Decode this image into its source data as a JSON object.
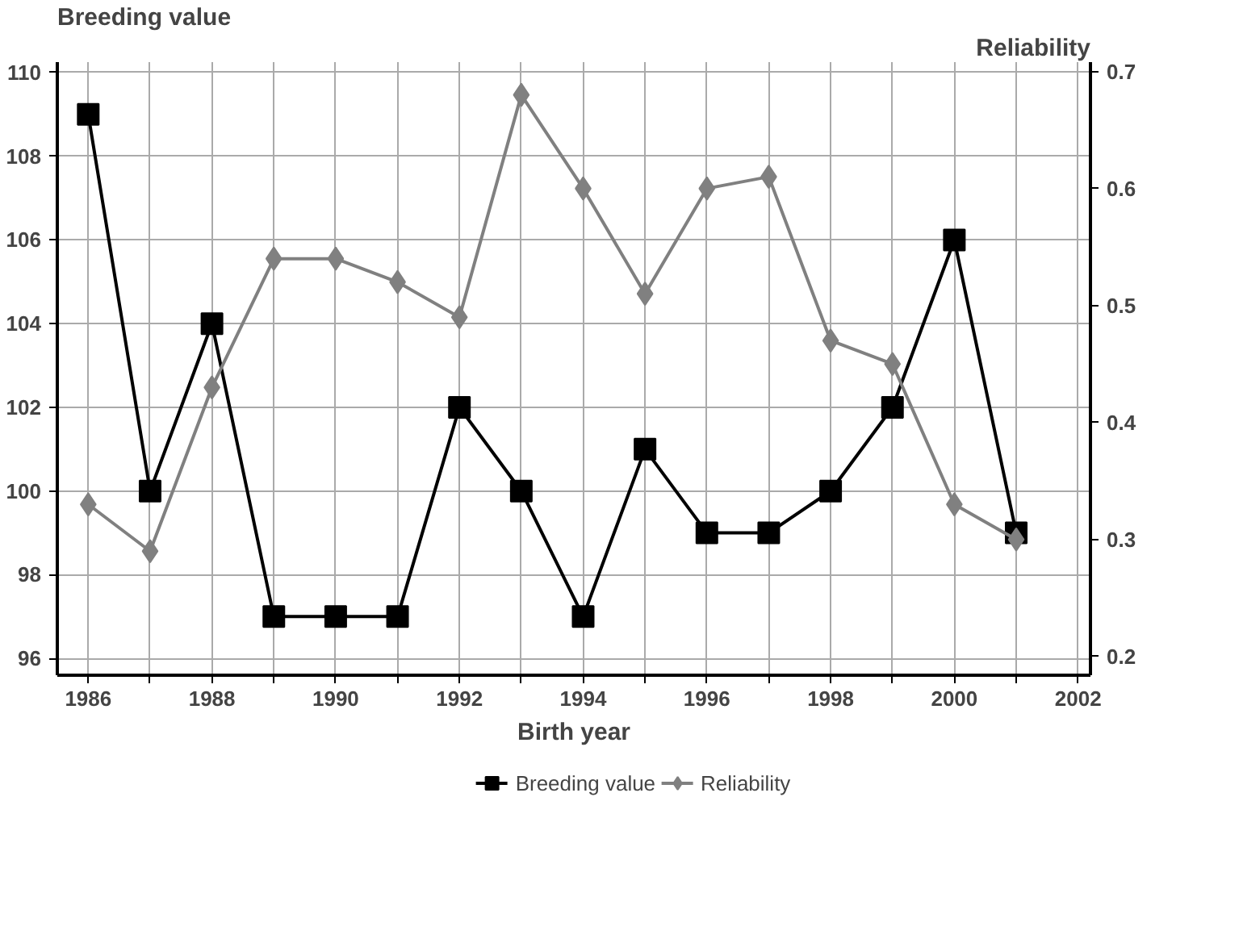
{
  "chart_data": {
    "type": "line",
    "xlabel": "Birth year",
    "ylabel": "Breeding value",
    "y2label": "Reliability",
    "x": [
      1986,
      1987,
      1988,
      1989,
      1990,
      1991,
      1992,
      1993,
      1994,
      1995,
      1996,
      1997,
      1998,
      1999,
      2000,
      2001
    ],
    "series": [
      {
        "name": "Breeding value",
        "color": "#000000",
        "marker": "square",
        "values": [
          109,
          100,
          104,
          97,
          97,
          97,
          102,
          100,
          97,
          101,
          99,
          99,
          100,
          102,
          106,
          99
        ]
      },
      {
        "name": "Reliability",
        "color": "#808080",
        "marker": "diamond",
        "axis": "y2",
        "values": [
          0.33,
          0.29,
          0.43,
          0.54,
          0.54,
          0.52,
          0.49,
          0.68,
          0.6,
          0.51,
          0.6,
          0.61,
          0.47,
          0.45,
          0.33,
          0.3
        ]
      }
    ],
    "xlim": [
      1985.5,
      2002.2
    ],
    "xticks": [
      1986,
      {
        "value": 1987,
        "label": null
      },
      1988,
      {
        "value": 1989,
        "label": null
      },
      1990,
      {
        "value": 1991,
        "label": null
      },
      1992,
      {
        "value": 1993,
        "label": null
      },
      1994,
      {
        "value": 1995,
        "label": null
      },
      1996,
      {
        "value": 1997,
        "label": null
      },
      1998,
      {
        "value": 1999,
        "label": null
      },
      2000,
      {
        "value": 2001,
        "label": null
      },
      2002
    ],
    "ylim": [
      95.6,
      110.25
    ],
    "yticks": [
      96,
      98,
      100,
      102,
      104,
      106,
      108,
      110
    ],
    "y2lim": [
      0.184,
      0.708
    ],
    "y2ticks": [
      0.2,
      0.3,
      0.4,
      0.5,
      0.6,
      0.7
    ],
    "grid": true,
    "legend": "bottom",
    "line_style": "solid"
  }
}
